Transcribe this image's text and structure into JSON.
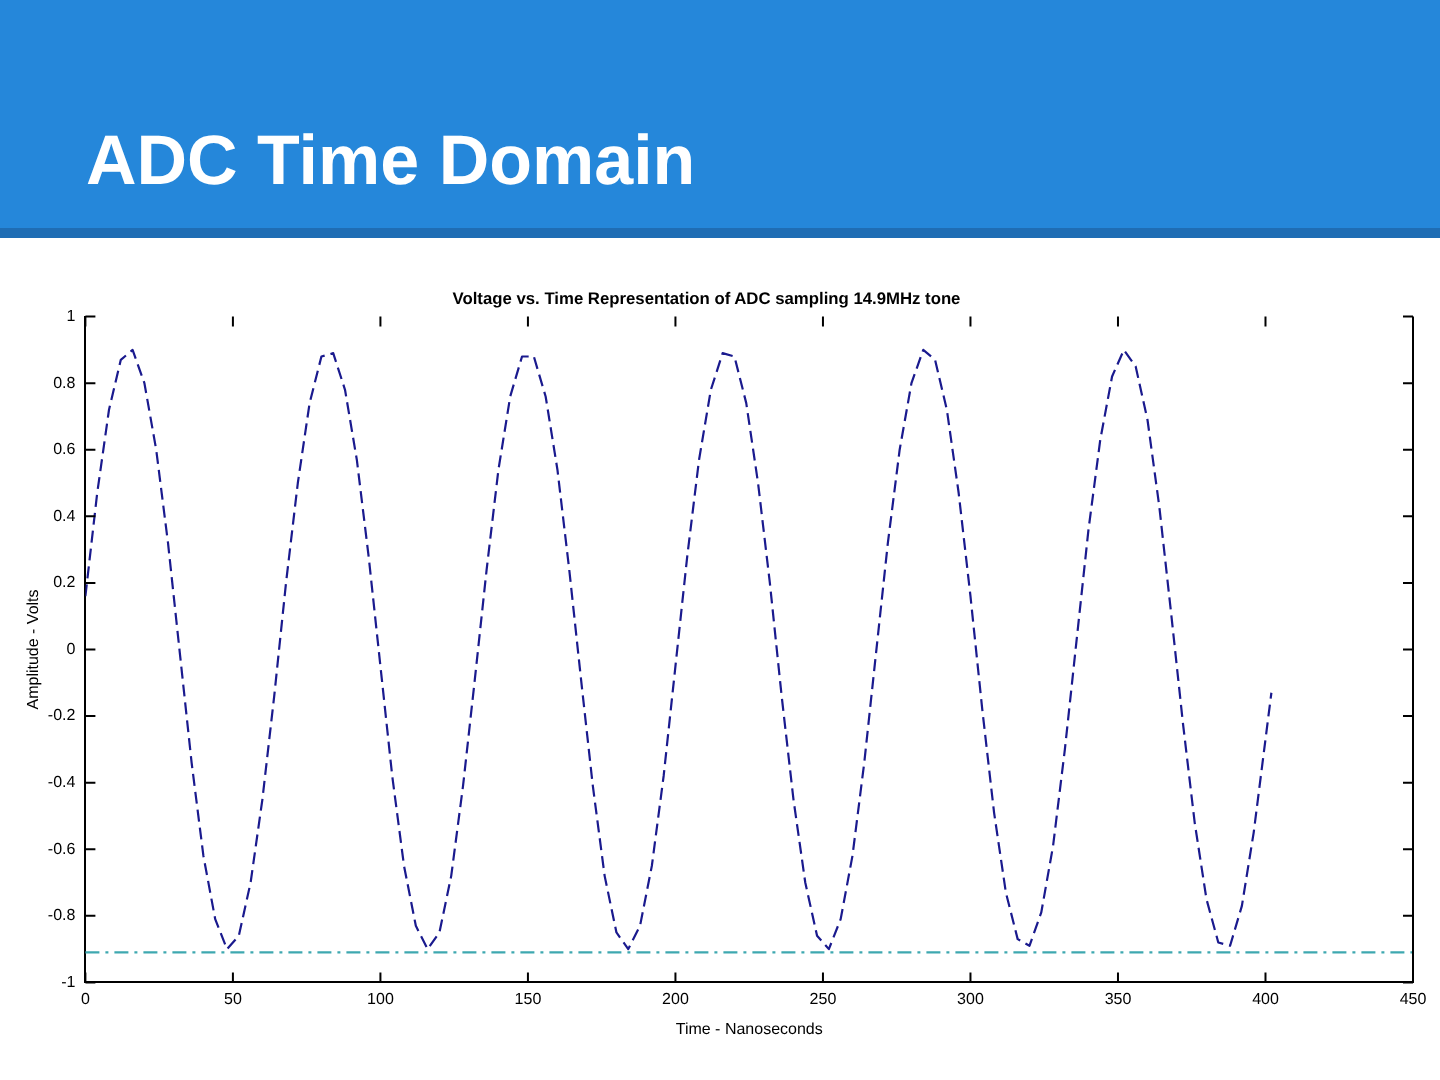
{
  "chart_data": {
    "type": "line",
    "title": "ADC Time Domain",
    "subtitle": "Voltage vs. Time Representation of ADC sampling 14.9MHz tone",
    "xlabel": "Time - Nanoseconds",
    "ylabel": "Amplitude - Volts",
    "x": [
      0,
      4,
      8,
      12,
      16,
      20,
      24,
      28,
      32,
      36,
      40,
      44,
      48,
      52,
      56,
      60,
      64,
      68,
      72,
      76,
      80,
      84,
      88,
      92,
      96,
      100,
      104,
      108,
      112,
      116,
      120,
      124,
      128,
      132,
      136,
      140,
      144,
      148,
      152,
      156,
      160,
      164,
      168,
      172,
      176,
      180,
      184,
      188,
      192,
      196,
      200,
      204,
      208,
      212,
      216,
      220,
      224,
      228,
      232,
      236,
      240,
      244,
      248,
      252,
      256,
      260,
      264,
      268,
      272,
      276,
      280,
      284,
      288,
      292,
      296,
      300,
      304,
      308,
      312,
      316,
      320,
      324,
      328,
      332,
      336,
      340,
      344,
      348,
      352,
      356,
      360,
      364,
      368,
      372,
      376,
      380,
      384,
      388,
      392,
      396,
      402
    ],
    "series": [
      {
        "color": "#1a1a8e",
        "values": [
          0.16,
          0.47,
          0.72,
          0.87,
          0.9,
          0.8,
          0.6,
          0.32,
          -0.01,
          -0.34,
          -0.62,
          -0.81,
          -0.9,
          -0.86,
          -0.7,
          -0.45,
          -0.14,
          0.2,
          0.5,
          0.74,
          0.88,
          0.89,
          0.78,
          0.57,
          0.28,
          -0.05,
          -0.38,
          -0.65,
          -0.83,
          -0.9,
          -0.85,
          -0.68,
          -0.41,
          -0.09,
          0.24,
          0.54,
          0.76,
          0.88,
          0.88,
          0.76,
          0.54,
          0.24,
          -0.09,
          -0.41,
          -0.68,
          -0.85,
          -0.9,
          -0.83,
          -0.65,
          -0.38,
          -0.05,
          0.28,
          0.57,
          0.78,
          0.89,
          0.88,
          0.74,
          0.5,
          0.2,
          -0.14,
          -0.45,
          -0.7,
          -0.86,
          -0.9,
          -0.81,
          -0.62,
          -0.34,
          -0.01,
          0.32,
          0.6,
          0.8,
          0.9,
          0.87,
          0.72,
          0.47,
          0.16,
          -0.18,
          -0.49,
          -0.73,
          -0.87,
          -0.89,
          -0.79,
          -0.59,
          -0.3,
          0.03,
          0.36,
          0.63,
          0.82,
          0.9,
          0.85,
          0.69,
          0.43,
          0.11,
          -0.22,
          -0.52,
          -0.75,
          -0.88,
          -0.89,
          -0.77,
          -0.55,
          -0.13
        ]
      }
    ],
    "xlim": [
      0,
      450
    ],
    "xticks": [
      0,
      50,
      100,
      150,
      200,
      250,
      300,
      350,
      400,
      450
    ],
    "ylim": [
      -1,
      1
    ],
    "yticks": [
      -1,
      -0.8,
      -0.6,
      -0.4,
      -0.2,
      0,
      0.2,
      0.4,
      0.6,
      0.8,
      1
    ],
    "ref_lines": [
      {
        "axis": "y",
        "value": -0.91,
        "color": "#3ea8b0",
        "line_style": "dashdot"
      }
    ],
    "legend": false,
    "marker": "none",
    "line_style": "dashed"
  }
}
